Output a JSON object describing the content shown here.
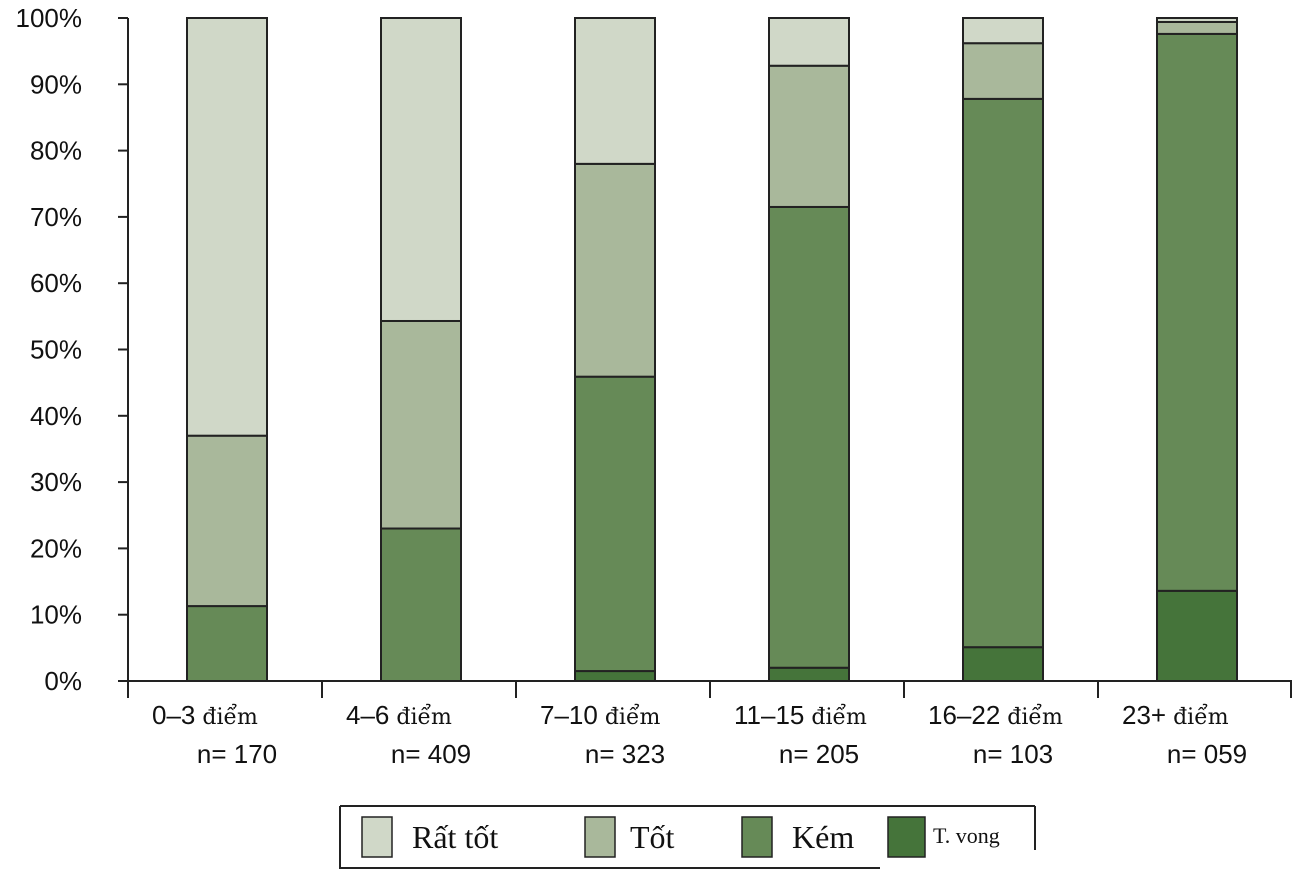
{
  "chart_data": {
    "type": "bar",
    "stacked": true,
    "title": "",
    "xlabel": "",
    "ylabel": "",
    "ylim": [
      0,
      100
    ],
    "yticks": [
      "0%",
      "10%",
      "20%",
      "30%",
      "40%",
      "50%",
      "60%",
      "70%",
      "80%",
      "90%",
      "100%"
    ],
    "categories": [
      {
        "range": "0–3",
        "unit": " điểm",
        "n": "n= 170"
      },
      {
        "range": "4–6",
        "unit": " điểm",
        "n": "n= 409"
      },
      {
        "range": "7–10",
        "unit": " điểm",
        "n": "n= 323"
      },
      {
        "range": "11–15",
        "unit": " điểm",
        "n": "n= 205"
      },
      {
        "range": "16–22",
        "unit": " điểm",
        "n": "n= 103"
      },
      {
        "range": "23+",
        "unit": " điểm",
        "n": "n= 059"
      }
    ],
    "series": [
      {
        "name": "T. vong",
        "color": "#45743a",
        "values": [
          0,
          0,
          1.5,
          2.0,
          5.1,
          13.6
        ]
      },
      {
        "name": "Kém",
        "color": "#668a57",
        "values": [
          11.3,
          23.0,
          44.4,
          69.5,
          82.7,
          84.0
        ]
      },
      {
        "name": "Tốt",
        "color": "#a9b89b",
        "values": [
          25.7,
          31.3,
          32.1,
          21.3,
          8.4,
          1.8
        ]
      },
      {
        "name": "Rất tốt",
        "color": "#d0d8c8",
        "values": [
          63.0,
          45.7,
          22.0,
          7.2,
          3.8,
          0.6
        ]
      }
    ],
    "legend": {
      "position": "bottom",
      "order": [
        "Rất tốt",
        "Tốt",
        "Kém",
        "T. vong"
      ]
    }
  }
}
